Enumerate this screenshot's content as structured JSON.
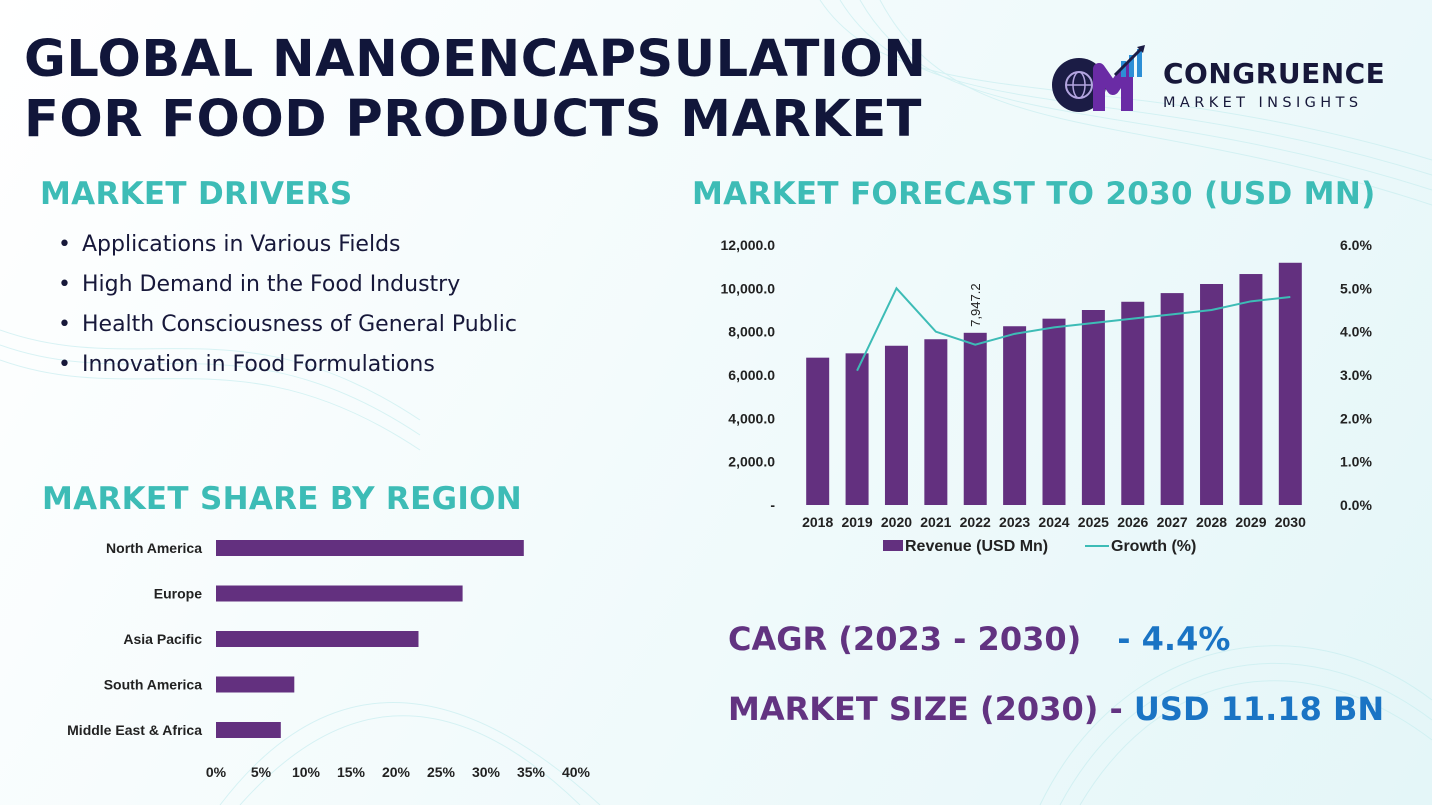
{
  "title": {
    "line1": "GLOBAL NANOENCAPSULATION",
    "line2": "FOR FOOD PRODUCTS MARKET"
  },
  "logo": {
    "initials": "CM",
    "name": "CONGRUENCE",
    "subtitle": "MARKET INSIGHTS"
  },
  "drivers": {
    "heading": "MARKET DRIVERS",
    "items": [
      "Applications in Various Fields",
      "High Demand in the Food Industry",
      "Health Consciousness of General Public",
      "Innovation in Food Formulations"
    ]
  },
  "forecast": {
    "heading": "MARKET FORECAST TO 2030 (USD MN)"
  },
  "region": {
    "heading": "MARKET SHARE BY REGION"
  },
  "stats": {
    "cagr_label": "CAGR (2023 - 2030)",
    "cagr_value": "- 4.4%",
    "size_label": "MARKET SIZE (2030) -",
    "size_value": "USD 11.18 BN"
  },
  "colors": {
    "bar": "#63307f",
    "line": "#3dbcb6",
    "heading": "#3dbcb6",
    "title": "#11163a",
    "stat_value": "#1a74c4"
  },
  "chart_data": [
    {
      "type": "bar",
      "title": "MARKET FORECAST TO 2030 (USD MN)",
      "categories": [
        "2018",
        "2019",
        "2020",
        "2021",
        "2022",
        "2023",
        "2024",
        "2025",
        "2026",
        "2027",
        "2028",
        "2029",
        "2030"
      ],
      "series": [
        {
          "name": "Revenue (USD Mn)",
          "type": "bar",
          "axis": "left",
          "values": [
            6800,
            7000,
            7350,
            7650,
            7947.2,
            8250,
            8600,
            9000,
            9380,
            9780,
            10200,
            10660,
            11180
          ]
        },
        {
          "name": "Growth (%)",
          "type": "line",
          "axis": "right",
          "values": [
            null,
            3.1,
            5.0,
            4.0,
            3.7,
            3.95,
            4.1,
            4.2,
            4.3,
            4.4,
            4.5,
            4.7,
            4.8
          ]
        }
      ],
      "ylim": [
        0,
        12000
      ],
      "yticks": [
        "-",
        "2,000.0",
        "4,000.0",
        "6,000.0",
        "8,000.0",
        "10,000.0",
        "12,000.0"
      ],
      "y2lim": [
        0,
        6
      ],
      "y2ticks": [
        "0.0%",
        "1.0%",
        "2.0%",
        "3.0%",
        "4.0%",
        "5.0%",
        "6.0%"
      ],
      "data_labels": [
        {
          "category": "2022",
          "text": "7,947.2"
        }
      ],
      "legend": "bottom",
      "grid": false
    },
    {
      "type": "bar",
      "orientation": "horizontal",
      "title": "MARKET SHARE BY REGION",
      "categories": [
        "North America",
        "Europe",
        "Asia Pacific",
        "South America",
        "Middle East & Africa"
      ],
      "values": [
        34.2,
        27.4,
        22.5,
        8.7,
        7.2
      ],
      "xlim": [
        0,
        40
      ],
      "xticks": [
        "0%",
        "5%",
        "10%",
        "15%",
        "20%",
        "25%",
        "30%",
        "35%",
        "40%"
      ],
      "grid": false
    }
  ]
}
